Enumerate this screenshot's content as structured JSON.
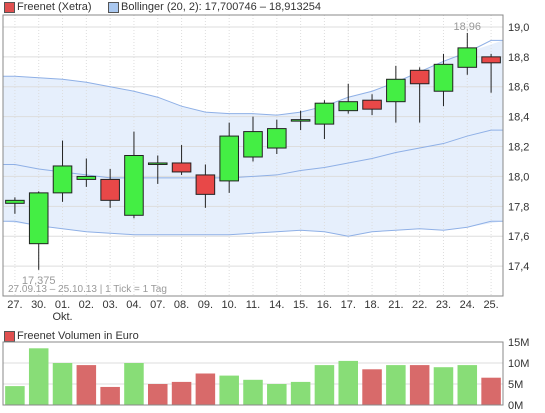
{
  "legend": {
    "series_label": "Freenet (Xetra)",
    "series_color": "#e05050",
    "bollinger_label": "Bollinger (20, 2): 17,700746 – 18,913254",
    "bollinger_color": "#aac8f0"
  },
  "volume_legend": {
    "label": "Freenet Volumen in Euro",
    "color": "#e05050"
  },
  "info_text": "27.09.13 – 25.10.13   |   1 Tick = 1 Tag",
  "colors": {
    "up": "#44ee44",
    "down": "#e84848",
    "vol_up": "#88dd77",
    "vol_down": "#d86a6a",
    "band_fill": "#e6effc",
    "band_line": "#8fb0e6",
    "grid": "#dddddd",
    "frame": "#888888"
  },
  "chart_data": [
    {
      "type": "candlestick",
      "title": "Freenet (Xetra)",
      "x_tick_labels": [
        "27.",
        "30.",
        "01.",
        "02.",
        "03.",
        "04.",
        "07.",
        "08.",
        "09.",
        "10.",
        "11.",
        "14.",
        "15.",
        "16.",
        "17.",
        "18.",
        "21.",
        "22.",
        "23.",
        "24.",
        "25."
      ],
      "x_sublabel": {
        "under": "01.",
        "text": "Okt."
      },
      "y_ticks": [
        "19,0",
        "18,8",
        "18,6",
        "18,4",
        "18,2",
        "18,0",
        "17,8",
        "17,6",
        "17,4"
      ],
      "ylim": [
        17.2,
        19.08
      ],
      "annotations": {
        "max": "18,96",
        "min": "17,375"
      },
      "ohlc": [
        {
          "o": 17.82,
          "h": 17.86,
          "l": 17.75,
          "c": 17.84
        },
        {
          "o": 17.55,
          "h": 17.9,
          "l": 17.375,
          "c": 17.89
        },
        {
          "o": 17.89,
          "h": 18.24,
          "l": 17.83,
          "c": 18.07
        },
        {
          "o": 17.98,
          "h": 18.12,
          "l": 17.93,
          "c": 18.0
        },
        {
          "o": 17.98,
          "h": 18.05,
          "l": 17.79,
          "c": 17.84
        },
        {
          "o": 17.74,
          "h": 18.3,
          "l": 17.72,
          "c": 18.14
        },
        {
          "o": 18.08,
          "h": 18.14,
          "l": 17.95,
          "c": 18.09
        },
        {
          "o": 18.09,
          "h": 18.21,
          "l": 18.01,
          "c": 18.03
        },
        {
          "o": 18.01,
          "h": 18.08,
          "l": 17.79,
          "c": 17.88
        },
        {
          "o": 17.97,
          "h": 18.36,
          "l": 17.89,
          "c": 18.27
        },
        {
          "o": 18.13,
          "h": 18.4,
          "l": 18.1,
          "c": 18.3
        },
        {
          "o": 18.19,
          "h": 18.38,
          "l": 18.15,
          "c": 18.32
        },
        {
          "o": 18.37,
          "h": 18.44,
          "l": 18.31,
          "c": 18.38
        },
        {
          "o": 18.35,
          "h": 18.51,
          "l": 18.25,
          "c": 18.49
        },
        {
          "o": 18.44,
          "h": 18.62,
          "l": 18.42,
          "c": 18.5
        },
        {
          "o": 18.51,
          "h": 18.55,
          "l": 18.41,
          "c": 18.45
        },
        {
          "o": 18.5,
          "h": 18.74,
          "l": 18.36,
          "c": 18.65
        },
        {
          "o": 18.71,
          "h": 18.73,
          "l": 18.36,
          "c": 18.62
        },
        {
          "o": 18.57,
          "h": 18.82,
          "l": 18.47,
          "c": 18.75
        },
        {
          "o": 18.73,
          "h": 18.96,
          "l": 18.68,
          "c": 18.86
        },
        {
          "o": 18.8,
          "h": 18.82,
          "l": 18.56,
          "c": 18.76
        }
      ],
      "bollinger_upper": [
        18.67,
        18.66,
        18.65,
        18.63,
        18.6,
        18.57,
        18.53,
        18.47,
        18.43,
        18.42,
        18.42,
        18.41,
        18.43,
        18.47,
        18.53,
        18.57,
        18.63,
        18.7,
        18.77,
        18.83,
        18.91
      ],
      "bollinger_middle": [
        18.08,
        18.05,
        18.03,
        18.01,
        17.99,
        17.99,
        17.99,
        17.99,
        17.99,
        17.99,
        18.0,
        18.01,
        18.04,
        18.06,
        18.09,
        18.12,
        18.16,
        18.19,
        18.22,
        18.27,
        18.31
      ],
      "bollinger_lower": [
        17.7,
        17.67,
        17.65,
        17.63,
        17.62,
        17.61,
        17.61,
        17.61,
        17.61,
        17.61,
        17.62,
        17.63,
        17.64,
        17.63,
        17.6,
        17.63,
        17.64,
        17.65,
        17.64,
        17.66,
        17.7
      ]
    },
    {
      "type": "bar",
      "title": "Freenet Volumen in Euro",
      "y_ticks": [
        "15M",
        "10M",
        "5M",
        "0M"
      ],
      "ylim": [
        0,
        15
      ],
      "values": [
        4.5,
        13.5,
        10.0,
        9.5,
        4.3,
        10.0,
        5.0,
        5.5,
        7.5,
        7.0,
        6.0,
        5.0,
        5.5,
        9.5,
        10.5,
        8.5,
        9.5,
        9.5,
        9.0,
        9.5,
        6.5
      ],
      "direction": [
        "up",
        "up",
        "up",
        "down",
        "down",
        "up",
        "down",
        "down",
        "down",
        "up",
        "up",
        "up",
        "up",
        "up",
        "up",
        "down",
        "up",
        "down",
        "up",
        "up",
        "down"
      ]
    }
  ]
}
